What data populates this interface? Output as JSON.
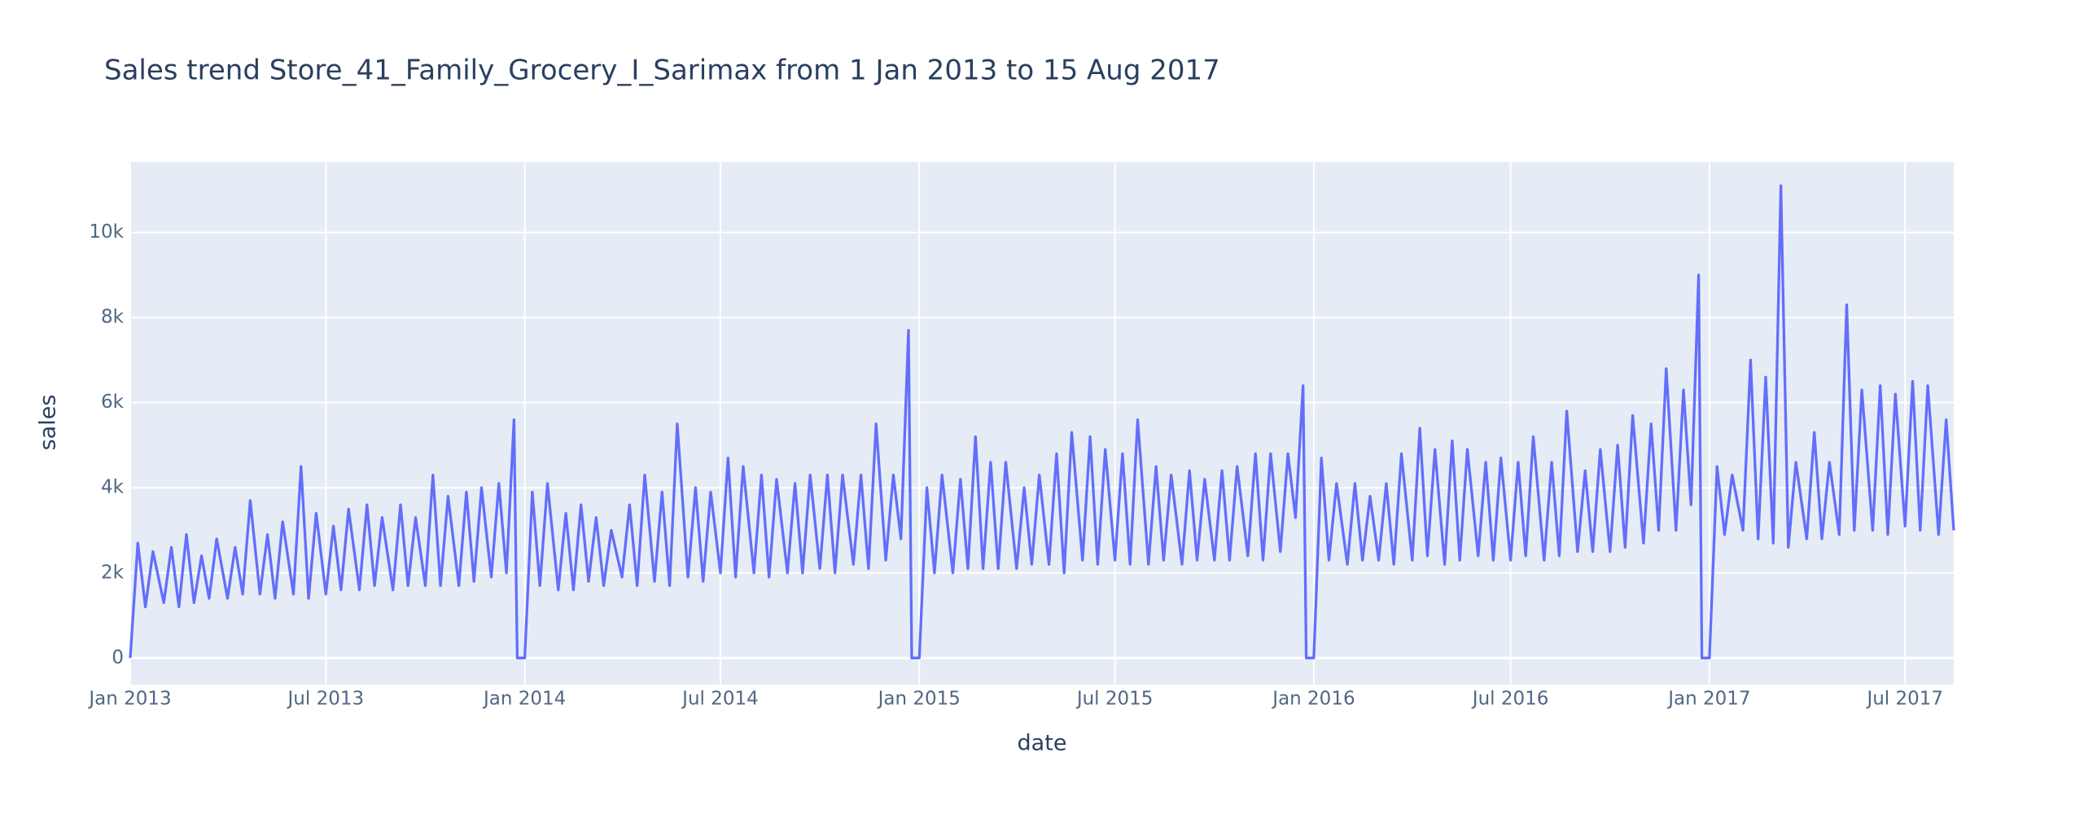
{
  "chart_data": {
    "type": "line",
    "title": "Sales trend Store_41_Family_Grocery_I_Sarimax from  1 Jan 2013 to 15 Aug 2017",
    "xlabel": "date",
    "ylabel": "sales",
    "x": [
      "2013-01-01",
      "2013-01-08",
      "2013-01-15",
      "2013-01-22",
      "2013-02-01",
      "2013-02-08",
      "2013-02-15",
      "2013-02-22",
      "2013-03-01",
      "2013-03-08",
      "2013-03-15",
      "2013-03-22",
      "2013-04-01",
      "2013-04-08",
      "2013-04-15",
      "2013-04-22",
      "2013-05-01",
      "2013-05-08",
      "2013-05-15",
      "2013-05-22",
      "2013-06-01",
      "2013-06-08",
      "2013-06-15",
      "2013-06-22",
      "2013-07-01",
      "2013-07-08",
      "2013-07-15",
      "2013-07-22",
      "2013-08-01",
      "2013-08-08",
      "2013-08-15",
      "2013-08-22",
      "2013-09-01",
      "2013-09-08",
      "2013-09-15",
      "2013-09-22",
      "2013-10-01",
      "2013-10-08",
      "2013-10-15",
      "2013-10-22",
      "2013-11-01",
      "2013-11-08",
      "2013-11-15",
      "2013-11-22",
      "2013-12-01",
      "2013-12-08",
      "2013-12-15",
      "2013-12-22",
      "2013-12-25",
      "2014-01-01",
      "2014-01-08",
      "2014-01-15",
      "2014-01-22",
      "2014-02-01",
      "2014-02-08",
      "2014-02-15",
      "2014-02-22",
      "2014-03-01",
      "2014-03-08",
      "2014-03-15",
      "2014-03-22",
      "2014-04-01",
      "2014-04-08",
      "2014-04-15",
      "2014-04-22",
      "2014-05-01",
      "2014-05-08",
      "2014-05-15",
      "2014-05-22",
      "2014-06-01",
      "2014-06-08",
      "2014-06-15",
      "2014-06-22",
      "2014-07-01",
      "2014-07-08",
      "2014-07-15",
      "2014-07-22",
      "2014-08-01",
      "2014-08-08",
      "2014-08-15",
      "2014-08-22",
      "2014-09-01",
      "2014-09-08",
      "2014-09-15",
      "2014-09-22",
      "2014-10-01",
      "2014-10-08",
      "2014-10-15",
      "2014-10-22",
      "2014-11-01",
      "2014-11-08",
      "2014-11-15",
      "2014-11-22",
      "2014-12-01",
      "2014-12-08",
      "2014-12-15",
      "2014-12-22",
      "2014-12-25",
      "2015-01-01",
      "2015-01-08",
      "2015-01-15",
      "2015-01-22",
      "2015-02-01",
      "2015-02-08",
      "2015-02-15",
      "2015-02-22",
      "2015-03-01",
      "2015-03-08",
      "2015-03-15",
      "2015-03-22",
      "2015-04-01",
      "2015-04-08",
      "2015-04-15",
      "2015-04-22",
      "2015-05-01",
      "2015-05-08",
      "2015-05-15",
      "2015-05-22",
      "2015-06-01",
      "2015-06-08",
      "2015-06-15",
      "2015-06-22",
      "2015-07-01",
      "2015-07-08",
      "2015-07-15",
      "2015-07-22",
      "2015-08-01",
      "2015-08-08",
      "2015-08-15",
      "2015-08-22",
      "2015-09-01",
      "2015-09-08",
      "2015-09-15",
      "2015-09-22",
      "2015-10-01",
      "2015-10-08",
      "2015-10-15",
      "2015-10-22",
      "2015-11-01",
      "2015-11-08",
      "2015-11-15",
      "2015-11-22",
      "2015-12-01",
      "2015-12-08",
      "2015-12-15",
      "2015-12-22",
      "2015-12-25",
      "2016-01-01",
      "2016-01-08",
      "2016-01-15",
      "2016-01-22",
      "2016-02-01",
      "2016-02-08",
      "2016-02-15",
      "2016-02-22",
      "2016-03-01",
      "2016-03-08",
      "2016-03-15",
      "2016-03-22",
      "2016-04-01",
      "2016-04-08",
      "2016-04-15",
      "2016-04-22",
      "2016-05-01",
      "2016-05-08",
      "2016-05-15",
      "2016-05-22",
      "2016-06-01",
      "2016-06-08",
      "2016-06-15",
      "2016-06-22",
      "2016-07-01",
      "2016-07-08",
      "2016-07-15",
      "2016-07-22",
      "2016-08-01",
      "2016-08-08",
      "2016-08-15",
      "2016-08-22",
      "2016-09-01",
      "2016-09-08",
      "2016-09-15",
      "2016-09-22",
      "2016-10-01",
      "2016-10-08",
      "2016-10-15",
      "2016-10-22",
      "2016-11-01",
      "2016-11-08",
      "2016-11-15",
      "2016-11-22",
      "2016-12-01",
      "2016-12-08",
      "2016-12-15",
      "2016-12-22",
      "2016-12-25",
      "2017-01-01",
      "2017-01-08",
      "2017-01-15",
      "2017-01-22",
      "2017-02-01",
      "2017-02-08",
      "2017-02-15",
      "2017-02-22",
      "2017-03-01",
      "2017-03-08",
      "2017-03-15",
      "2017-03-22",
      "2017-04-01",
      "2017-04-08",
      "2017-04-15",
      "2017-04-22",
      "2017-05-01",
      "2017-05-08",
      "2017-05-15",
      "2017-05-22",
      "2017-06-01",
      "2017-06-08",
      "2017-06-15",
      "2017-06-22",
      "2017-07-01",
      "2017-07-08",
      "2017-07-15",
      "2017-07-22",
      "2017-08-01",
      "2017-08-08",
      "2017-08-15"
    ],
    "series": [
      {
        "name": "sales",
        "color": "#636efa",
        "values": [
          0,
          2700,
          1200,
          2500,
          1300,
          2600,
          1200,
          2900,
          1300,
          2400,
          1400,
          2800,
          1400,
          2600,
          1500,
          3700,
          1500,
          2900,
          1400,
          3200,
          1500,
          4500,
          1400,
          3400,
          1500,
          3100,
          1600,
          3500,
          1600,
          3600,
          1700,
          3300,
          1600,
          3600,
          1700,
          3300,
          1700,
          4300,
          1700,
          3800,
          1700,
          3900,
          1800,
          4000,
          1900,
          4100,
          2000,
          5600,
          0,
          0,
          3900,
          1700,
          4100,
          1600,
          3400,
          1600,
          3600,
          1800,
          3300,
          1700,
          3000,
          1900,
          3600,
          1700,
          4300,
          1800,
          3900,
          1700,
          5500,
          1900,
          4000,
          1800,
          3900,
          2000,
          4700,
          1900,
          4500,
          2000,
          4300,
          1900,
          4200,
          2000,
          4100,
          2000,
          4300,
          2100,
          4300,
          2000,
          4300,
          2200,
          4300,
          2100,
          5500,
          2300,
          4300,
          2800,
          7700,
          0,
          0,
          4000,
          2000,
          4300,
          2000,
          4200,
          2100,
          5200,
          2100,
          4600,
          2100,
          4600,
          2100,
          4000,
          2200,
          4300,
          2200,
          4800,
          2000,
          5300,
          2300,
          5200,
          2200,
          4900,
          2300,
          4800,
          2200,
          5600,
          2200,
          4500,
          2300,
          4300,
          2200,
          4400,
          2300,
          4200,
          2300,
          4400,
          2300,
          4500,
          2400,
          4800,
          2300,
          4800,
          2500,
          4800,
          3300,
          6400,
          0,
          0,
          4700,
          2300,
          4100,
          2200,
          4100,
          2300,
          3800,
          2300,
          4100,
          2200,
          4800,
          2300,
          5400,
          2400,
          4900,
          2200,
          5100,
          2300,
          4900,
          2400,
          4600,
          2300,
          4700,
          2300,
          4600,
          2400,
          5200,
          2300,
          4600,
          2400,
          5800,
          2500,
          4400,
          2500,
          4900,
          2500,
          5000,
          2600,
          5700,
          2700,
          5500,
          3000,
          6800,
          3000,
          6300,
          3600,
          9000,
          0,
          0,
          4500,
          2900,
          4300,
          3000,
          7000,
          2800,
          6600,
          2700,
          11100,
          2600,
          4600,
          2800,
          5300,
          2800,
          4600,
          2900,
          8300,
          3000,
          6300,
          3000,
          6400,
          2900,
          6200,
          3100,
          6500,
          3000,
          6400,
          2900,
          5600,
          3000
        ]
      }
    ],
    "xlim": [
      "2013-01-01",
      "2017-08-15"
    ],
    "xticks": [
      {
        "value": "2013-01-01",
        "label": "Jan 2013"
      },
      {
        "value": "2013-07-01",
        "label": "Jul 2013"
      },
      {
        "value": "2014-01-01",
        "label": "Jan 2014"
      },
      {
        "value": "2014-07-01",
        "label": "Jul 2014"
      },
      {
        "value": "2015-01-01",
        "label": "Jan 2015"
      },
      {
        "value": "2015-07-01",
        "label": "Jul 2015"
      },
      {
        "value": "2016-01-01",
        "label": "Jan 2016"
      },
      {
        "value": "2016-07-01",
        "label": "Jul 2016"
      },
      {
        "value": "2017-01-01",
        "label": "Jan 2017"
      },
      {
        "value": "2017-07-01",
        "label": "Jul 2017"
      }
    ],
    "ylim": [
      -625,
      11656
    ],
    "yticks": [
      0,
      {
        "value": 2000,
        "label": "2k"
      },
      {
        "value": 4000,
        "label": "4k"
      },
      {
        "value": 6000,
        "label": "6k"
      },
      {
        "value": 8000,
        "label": "8k"
      },
      {
        "value": 10000,
        "label": "10k"
      }
    ],
    "grid": true
  }
}
